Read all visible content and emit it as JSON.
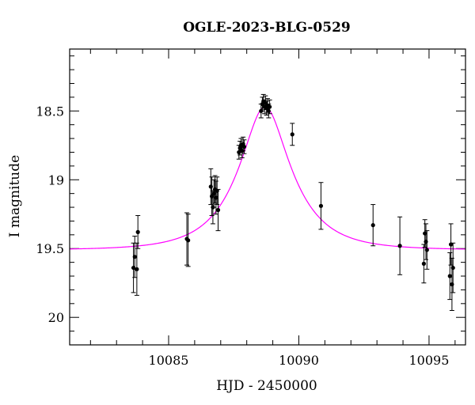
{
  "chart_data": {
    "type": "scatter",
    "title": "OGLE-2023-BLG-0529",
    "xlabel": "HJD - 2450000",
    "ylabel": "I magnitude",
    "xlim": [
      10081.2,
      10096.4
    ],
    "ylim": [
      20.2,
      18.05
    ],
    "y_inverted": true,
    "x_ticks": [
      10085,
      10090,
      10095
    ],
    "x_tick_labels": [
      "10085",
      "10090",
      "10095"
    ],
    "y_ticks": [
      18.5,
      19,
      19.5,
      20
    ],
    "y_tick_labels": [
      "18.5",
      "19",
      "19.5",
      "20"
    ],
    "grid": false,
    "legend": "none",
    "colors": {
      "model": "#ff00ff",
      "points": "#000000",
      "axes": "#000000"
    },
    "model": {
      "name": "",
      "baseline_mag": 19.51,
      "peak_mag": 18.47,
      "t0": 10088.7,
      "tE": 1.9,
      "note": ""
    },
    "points": [
      {
        "x": 10083.65,
        "y": 19.64,
        "err": 0.18
      },
      {
        "x": 10083.7,
        "y": 19.56,
        "err": 0.15
      },
      {
        "x": 10083.78,
        "y": 19.65,
        "err": 0.19
      },
      {
        "x": 10083.82,
        "y": 19.38,
        "err": 0.12
      },
      {
        "x": 10085.7,
        "y": 19.43,
        "err": 0.19
      },
      {
        "x": 10085.75,
        "y": 19.44,
        "err": 0.19
      },
      {
        "x": 10086.62,
        "y": 19.05,
        "err": 0.13
      },
      {
        "x": 10086.66,
        "y": 19.12,
        "err": 0.14
      },
      {
        "x": 10086.7,
        "y": 19.2,
        "err": 0.12
      },
      {
        "x": 10086.74,
        "y": 19.1,
        "err": 0.1
      },
      {
        "x": 10086.78,
        "y": 19.07,
        "err": 0.1
      },
      {
        "x": 10086.82,
        "y": 19.13,
        "err": 0.12
      },
      {
        "x": 10086.86,
        "y": 19.08,
        "err": 0.1
      },
      {
        "x": 10086.9,
        "y": 19.22,
        "err": 0.15
      },
      {
        "x": 10087.7,
        "y": 18.8,
        "err": 0.05
      },
      {
        "x": 10087.74,
        "y": 18.77,
        "err": 0.05
      },
      {
        "x": 10087.78,
        "y": 18.75,
        "err": 0.05
      },
      {
        "x": 10087.82,
        "y": 18.79,
        "err": 0.05
      },
      {
        "x": 10087.86,
        "y": 18.74,
        "err": 0.05
      },
      {
        "x": 10087.9,
        "y": 18.76,
        "err": 0.05
      },
      {
        "x": 10088.55,
        "y": 18.5,
        "err": 0.05
      },
      {
        "x": 10088.6,
        "y": 18.45,
        "err": 0.05
      },
      {
        "x": 10088.64,
        "y": 18.43,
        "err": 0.05
      },
      {
        "x": 10088.68,
        "y": 18.47,
        "err": 0.05
      },
      {
        "x": 10088.72,
        "y": 18.44,
        "err": 0.05
      },
      {
        "x": 10088.76,
        "y": 18.48,
        "err": 0.05
      },
      {
        "x": 10088.8,
        "y": 18.46,
        "err": 0.05
      },
      {
        "x": 10088.84,
        "y": 18.5,
        "err": 0.05
      },
      {
        "x": 10088.88,
        "y": 18.47,
        "err": 0.05
      },
      {
        "x": 10089.75,
        "y": 18.67,
        "err": 0.08
      },
      {
        "x": 10090.85,
        "y": 19.19,
        "err": 0.17
      },
      {
        "x": 10092.85,
        "y": 19.33,
        "err": 0.15
      },
      {
        "x": 10093.88,
        "y": 19.48,
        "err": 0.21
      },
      {
        "x": 10094.8,
        "y": 19.61,
        "err": 0.14
      },
      {
        "x": 10094.84,
        "y": 19.39,
        "err": 0.1
      },
      {
        "x": 10094.88,
        "y": 19.45,
        "err": 0.13
      },
      {
        "x": 10094.92,
        "y": 19.51,
        "err": 0.14
      },
      {
        "x": 10095.8,
        "y": 19.7,
        "err": 0.17
      },
      {
        "x": 10095.84,
        "y": 19.47,
        "err": 0.15
      },
      {
        "x": 10095.88,
        "y": 19.76,
        "err": 0.19
      },
      {
        "x": 10095.92,
        "y": 19.64,
        "err": 0.18
      }
    ]
  }
}
